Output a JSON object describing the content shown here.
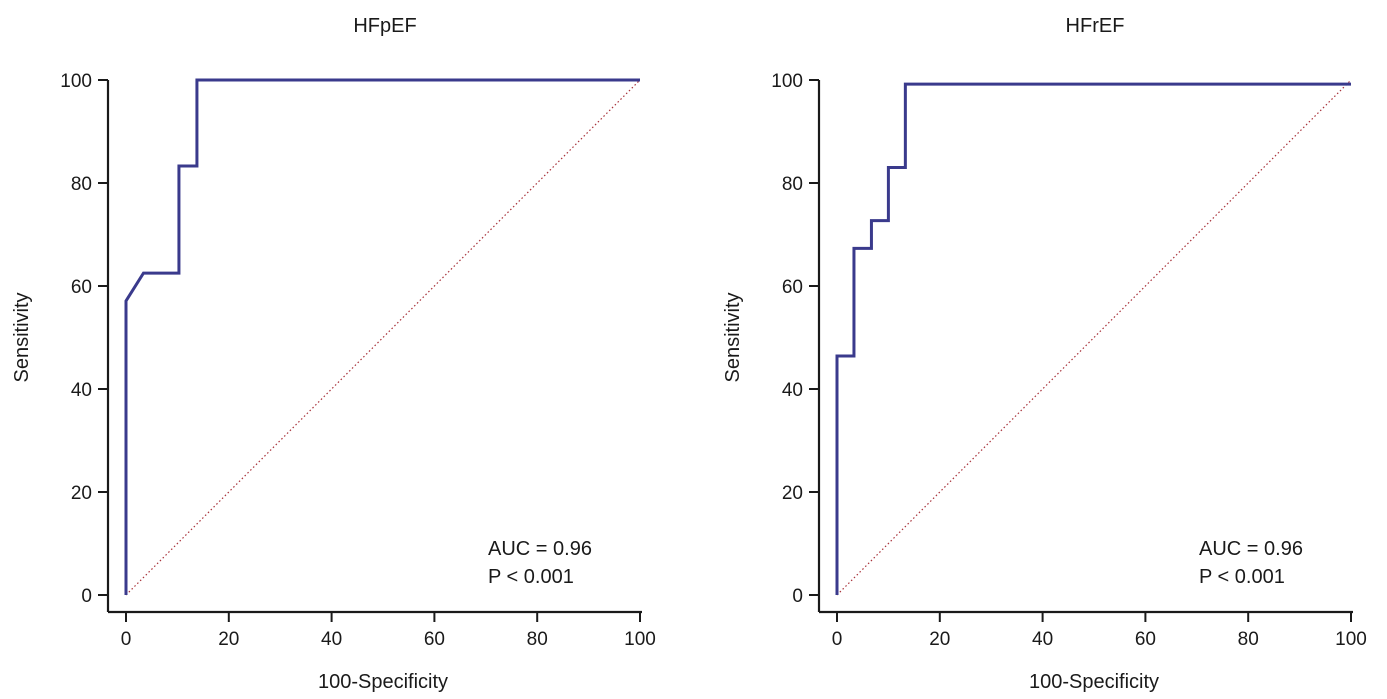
{
  "colors": {
    "roc": "#3a3a8c",
    "reference": "#a8323a",
    "axis": "#1a1a1a"
  },
  "chart_data": [
    {
      "type": "line",
      "title": "HFpEF",
      "xlabel": "100-Specificity",
      "ylabel": "Sensitivity",
      "xlim": [
        0,
        100
      ],
      "ylim": [
        0,
        100
      ],
      "xticks": [
        0,
        20,
        40,
        60,
        80,
        100
      ],
      "yticks": [
        0,
        20,
        40,
        60,
        80,
        100
      ],
      "grid": false,
      "series": [
        {
          "x": [
            0,
            0,
            3.4,
            10.3,
            10.3,
            13.8,
            13.8,
            100
          ],
          "y": [
            0,
            57.1,
            62.5,
            62.5,
            83.3,
            83.3,
            100,
            100
          ]
        }
      ],
      "reference_line": {
        "x": [
          0,
          100
        ],
        "y": [
          0,
          100
        ]
      },
      "annotations": [
        "AUC = 0.96",
        "P < 0.001"
      ]
    },
    {
      "type": "line",
      "title": "HFrEF",
      "xlabel": "100-Specificity",
      "ylabel": "Sensitivity",
      "xlim": [
        0,
        100
      ],
      "ylim": [
        0,
        100
      ],
      "xticks": [
        0,
        20,
        40,
        60,
        80,
        100
      ],
      "yticks": [
        0,
        20,
        40,
        60,
        80,
        100
      ],
      "grid": false,
      "series": [
        {
          "x": [
            0,
            0,
            3.3,
            3.3,
            6.7,
            6.7,
            10.0,
            10.0,
            13.3,
            13.3,
            100
          ],
          "y": [
            0,
            46.4,
            46.4,
            67.3,
            67.3,
            72.7,
            72.7,
            83.0,
            83.0,
            99.2,
            99.2
          ]
        }
      ],
      "reference_line": {
        "x": [
          0,
          100
        ],
        "y": [
          0,
          100
        ]
      },
      "annotations": [
        "AUC = 0.96",
        "P < 0.001"
      ]
    }
  ]
}
